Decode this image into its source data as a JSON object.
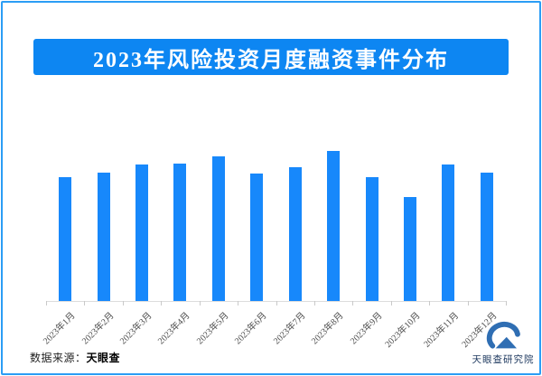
{
  "page": {
    "title": "2023年风险投资月度融资事件分布",
    "source_label": "数据来源：",
    "source_value": "天眼查",
    "logo_text": "天眼查研究院"
  },
  "colors": {
    "border_blue": "#2b9df5",
    "banner_blue": "#0d86f2",
    "bar_blue": "#1788fb",
    "axis_gray": "#dcdcdc",
    "tick_gray": "#c9c9c9",
    "label_gray": "#4d4d4d",
    "title_text": "#ffffff",
    "logo_blue": "#2f6eb3",
    "logo_navy": "#1f3a60"
  },
  "chart_data": {
    "type": "bar",
    "title": "2023年风险投资月度融资事件分布",
    "categories": [
      "2023年1月",
      "2023年2月",
      "2023年3月",
      "2023年4月",
      "2023年5月",
      "2023年6月",
      "2023年7月",
      "2023年8月",
      "2023年9月",
      "2023年10月",
      "2023年11月",
      "2023年12月"
    ],
    "values": [
      137,
      142,
      151,
      152,
      160,
      141,
      148,
      166,
      137,
      115,
      151,
      142
    ],
    "unit": "relative bar height in px (chart shows no y-axis scale or data labels)",
    "xlabel": "",
    "ylabel": "",
    "grid": false,
    "legend": false,
    "y_axis_visible": false,
    "x_label_rotation_deg": -45,
    "bar_color": "#1788fb"
  }
}
